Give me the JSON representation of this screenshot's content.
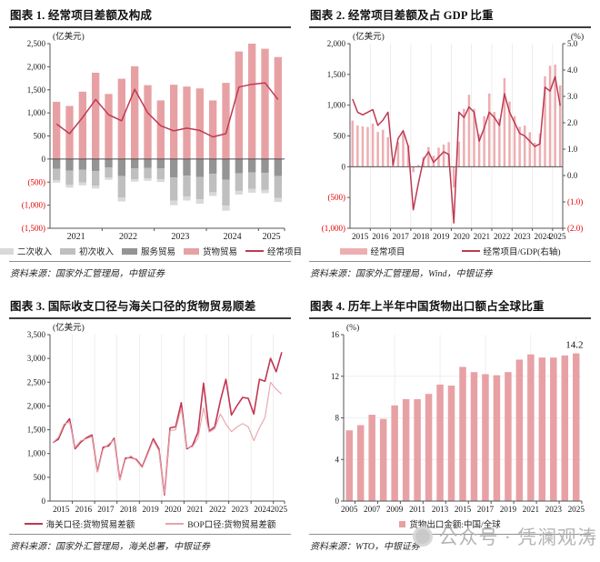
{
  "watermark": {
    "text": "公众号 · 凭澜观涛"
  },
  "colors": {
    "bar_pink": "#e7a1a4",
    "bar_pink_light": "#edaeb2",
    "line_red": "#be3a52",
    "line_pink": "#e7a3ab",
    "gray_light": "#d9d9d9",
    "gray_mid": "#bfbfbf",
    "gray_dark": "#949494",
    "negative_label_red": "#e60000"
  },
  "chart_data": [
    {
      "type": "bar+line",
      "title": "图表 1. 经常项目差额及构成",
      "unit_left": "(亿美元)",
      "source": "资料来源：国家外汇管理局，中银证券",
      "categories": [
        "2021Q1",
        "2021Q2",
        "2021Q3",
        "2021Q4",
        "2022Q1",
        "2022Q2",
        "2022Q3",
        "2022Q4",
        "2023Q1",
        "2023Q2",
        "2023Q3",
        "2023Q4",
        "2024Q1",
        "2024Q2",
        "2024Q3",
        "2024Q4",
        "2025Q1",
        "2025Q2"
      ],
      "ylim_left": [
        -1500,
        2500
      ],
      "ytick_step": 500,
      "legend_position": "bottom",
      "series": [
        {
          "name": "二次收入",
          "type": "bar",
          "stack": 3,
          "color": "#d9d9d9",
          "values": [
            -50,
            -60,
            -60,
            -60,
            -50,
            -90,
            -50,
            -50,
            -60,
            -100,
            -90,
            -100,
            -80,
            -110,
            -80,
            -80,
            -70,
            -90
          ]
        },
        {
          "name": "初次收入",
          "type": "bar",
          "stack": 2,
          "color": "#bfbfbf",
          "values": [
            -250,
            -310,
            -280,
            -320,
            -220,
            -460,
            -240,
            -230,
            -240,
            -500,
            -450,
            -480,
            -400,
            -560,
            -380,
            -360,
            -370,
            -470
          ]
        },
        {
          "name": "服务贸易",
          "type": "bar",
          "stack": 1,
          "color": "#949494",
          "values": [
            -210,
            -250,
            -230,
            -260,
            -180,
            -370,
            -200,
            -190,
            -200,
            -400,
            -360,
            -390,
            -320,
            -450,
            -310,
            -290,
            -300,
            -370
          ]
        },
        {
          "name": "货物贸易",
          "type": "bar",
          "color": "#e7a1a4",
          "values": [
            1240,
            1150,
            1460,
            1870,
            1410,
            1740,
            2010,
            1600,
            1270,
            1610,
            1570,
            1530,
            1270,
            1650,
            2330,
            2500,
            2390,
            2210
          ]
        },
        {
          "name": "经常项目",
          "type": "line",
          "color": "#be3a52",
          "values": [
            760,
            550,
            900,
            1290,
            960,
            830,
            1510,
            1000,
            720,
            610,
            670,
            620,
            480,
            550,
            1560,
            1620,
            1650,
            1290
          ]
        }
      ]
    },
    {
      "type": "bar+line",
      "title": "图表 2. 经常项目差额及占 GDP 比重",
      "unit_left": "(亿美元)",
      "unit_right": "(%)",
      "source": "资料来源：国家外汇管理局，Wind，中银证券",
      "categories": [
        "2015Q1",
        "2015Q2",
        "2015Q3",
        "2015Q4",
        "2016Q1",
        "2016Q2",
        "2016Q3",
        "2016Q4",
        "2017Q1",
        "2017Q2",
        "2017Q3",
        "2017Q4",
        "2018Q1",
        "2018Q2",
        "2018Q3",
        "2018Q4",
        "2019Q1",
        "2019Q2",
        "2019Q3",
        "2019Q4",
        "2020Q1",
        "2020Q2",
        "2020Q3",
        "2020Q4",
        "2021Q1",
        "2021Q2",
        "2021Q3",
        "2021Q4",
        "2022Q1",
        "2022Q2",
        "2022Q3",
        "2022Q4",
        "2023Q1",
        "2023Q2",
        "2023Q3",
        "2023Q4",
        "2024Q1",
        "2024Q2",
        "2024Q3",
        "2024Q4",
        "2025Q1",
        "2025Q2"
      ],
      "ylim_left": [
        -1000,
        2000
      ],
      "ytick_step": 500,
      "ylim_right": [
        -2,
        5
      ],
      "ytick_step_right": 1,
      "grid_v": "year",
      "legend_position": "bottom",
      "series": [
        {
          "name": "经常项目",
          "type": "bar",
          "color": "#edaeb2",
          "values": [
            750,
            670,
            655,
            645,
            700,
            565,
            600,
            480,
            90,
            400,
            550,
            350,
            -90,
            30,
            160,
            320,
            180,
            310,
            360,
            400,
            -340,
            410,
            940,
            1170,
            940,
            530,
            820,
            1190,
            890,
            780,
            1440,
            1060,
            820,
            650,
            670,
            560,
            390,
            540,
            1470,
            1640,
            1660,
            1320
          ]
        },
        {
          "name": "经常项目/GDP(右轴)",
          "type": "line",
          "axis": "right",
          "color": "#be3a52",
          "values": [
            2.9,
            2.4,
            2.3,
            2.4,
            2.5,
            1.9,
            2.1,
            2.4,
            0.4,
            1.4,
            1.7,
            1.1,
            -1.3,
            -0.3,
            0.6,
            0.9,
            0.5,
            0.7,
            0.9,
            0.8,
            -1.8,
            2.4,
            2.2,
            2.6,
            2.4,
            1.3,
            1.8,
            2.4,
            2.2,
            1.9,
            3.1,
            2.4,
            2.0,
            1.6,
            1.5,
            1.3,
            1.1,
            1.2,
            3.35,
            3.2,
            3.75,
            2.65
          ]
        }
      ]
    },
    {
      "type": "line",
      "title": "图表 3. 国际收支口径与海关口径的货物贸易顺差",
      "unit_left": "(亿美元)",
      "source": "资料来源：国家外汇管理局，海关总署，中银证券",
      "categories": [
        "2015Q1",
        "2015Q2",
        "2015Q3",
        "2015Q4",
        "2016Q1",
        "2016Q2",
        "2016Q3",
        "2016Q4",
        "2017Q1",
        "2017Q2",
        "2017Q3",
        "2017Q4",
        "2018Q1",
        "2018Q2",
        "2018Q3",
        "2018Q4",
        "2019Q1",
        "2019Q2",
        "2019Q3",
        "2019Q4",
        "2020Q1",
        "2020Q2",
        "2020Q3",
        "2020Q4",
        "2021Q1",
        "2021Q2",
        "2021Q3",
        "2021Q4",
        "2022Q1",
        "2022Q2",
        "2022Q3",
        "2022Q4",
        "2023Q1",
        "2023Q2",
        "2023Q3",
        "2023Q4",
        "2024Q1",
        "2024Q2",
        "2024Q3",
        "2024Q4",
        "2025Q1",
        "2025Q2"
      ],
      "ylim_left": [
        0,
        3500
      ],
      "ytick_step": 500,
      "grid_v": "year",
      "legend_position": "bottom",
      "series": [
        {
          "name": "海关口径:货物贸易差额",
          "type": "line",
          "color": "#c13652",
          "width": 1.6,
          "values": [
            1230,
            1300,
            1580,
            1730,
            1100,
            1240,
            1330,
            1390,
            620,
            1130,
            1160,
            1320,
            450,
            900,
            920,
            870,
            720,
            1010,
            1310,
            1100,
            130,
            1540,
            1560,
            2070,
            1100,
            1160,
            1450,
            2480,
            1470,
            1560,
            2110,
            2560,
            1810,
            2010,
            2180,
            2160,
            1830,
            2560,
            2520,
            3000,
            2720,
            3130
          ]
        },
        {
          "name": "BOP口径:货物贸易差额",
          "type": "line",
          "color": "#e7a3ab",
          "width": 1.1,
          "values": [
            1230,
            1340,
            1620,
            1660,
            1130,
            1270,
            1310,
            1350,
            610,
            1090,
            1200,
            1290,
            440,
            870,
            950,
            850,
            700,
            980,
            1270,
            1060,
            150,
            1480,
            1500,
            1950,
            1120,
            1140,
            1320,
            1960,
            1450,
            1520,
            1830,
            1620,
            1460,
            1560,
            1630,
            1560,
            1270,
            1540,
            1760,
            2500,
            2350,
            2250
          ]
        }
      ]
    },
    {
      "type": "bar",
      "title": "图表 4. 历年上半年中国货物出口额占全球比重",
      "unit_left": "(%)",
      "source": "资料来源：WTO，中银证券",
      "categories": [
        "2005",
        "2006",
        "2007",
        "2008",
        "2009",
        "2010",
        "2011",
        "2012",
        "2013",
        "2014",
        "2015",
        "2016",
        "2017",
        "2018",
        "2019",
        "2020",
        "2021",
        "2022",
        "2023",
        "2024",
        "2025"
      ],
      "ylim_left": [
        0,
        16
      ],
      "ytick_step": 4,
      "grid_v": "sparse",
      "grid_h": true,
      "x_label_every": 2,
      "legend_swatch": "square",
      "legend_position": "bottom",
      "annotation": {
        "text": "14.2",
        "index": 20
      },
      "series": [
        {
          "name": "货物出口金额:中国/全球",
          "type": "bar",
          "color": "#e7a1a4",
          "values": [
            6.8,
            7.3,
            8.3,
            7.9,
            9.2,
            9.8,
            9.8,
            10.3,
            11.2,
            11.1,
            12.9,
            12.4,
            12.2,
            12.1,
            12.4,
            13.6,
            14.1,
            13.8,
            13.8,
            14.0,
            14.2
          ]
        }
      ]
    }
  ]
}
